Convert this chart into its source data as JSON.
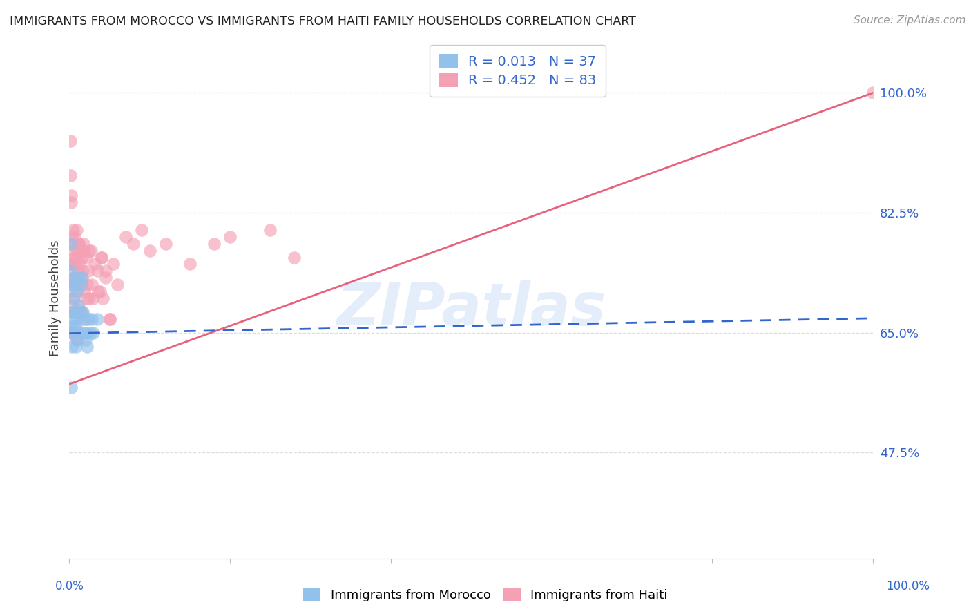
{
  "title": "IMMIGRANTS FROM MOROCCO VS IMMIGRANTS FROM HAITI FAMILY HOUSEHOLDS CORRELATION CHART",
  "source": "Source: ZipAtlas.com",
  "ylabel": "Family Households",
  "ytick_labels": [
    "100.0%",
    "82.5%",
    "65.0%",
    "47.5%"
  ],
  "ytick_values": [
    1.0,
    0.825,
    0.65,
    0.475
  ],
  "xlim": [
    0.0,
    1.0
  ],
  "ylim": [
    0.32,
    1.08
  ],
  "morocco_color": "#92C1EC",
  "haiti_color": "#F4A0B5",
  "morocco_line_color": "#3366CC",
  "haiti_line_color": "#E8607A",
  "morocco_R": 0.013,
  "morocco_N": 37,
  "haiti_R": 0.452,
  "haiti_N": 83,
  "legend_label_morocco": "Immigrants from Morocco",
  "legend_label_haiti": "Immigrants from Haiti",
  "watermark": "ZIPatlas",
  "morocco_scatter_x": [
    0.001,
    0.002,
    0.003,
    0.003,
    0.004,
    0.004,
    0.005,
    0.005,
    0.006,
    0.006,
    0.007,
    0.007,
    0.008,
    0.008,
    0.009,
    0.009,
    0.01,
    0.01,
    0.011,
    0.012,
    0.013,
    0.014,
    0.015,
    0.016,
    0.017,
    0.018,
    0.019,
    0.02,
    0.021,
    0.022,
    0.024,
    0.026,
    0.028,
    0.03,
    0.035,
    0.001,
    0.002
  ],
  "morocco_scatter_y": [
    0.74,
    0.65,
    0.68,
    0.63,
    0.72,
    0.66,
    0.7,
    0.65,
    0.73,
    0.67,
    0.72,
    0.68,
    0.66,
    0.63,
    0.71,
    0.67,
    0.68,
    0.64,
    0.69,
    0.73,
    0.65,
    0.68,
    0.72,
    0.73,
    0.68,
    0.67,
    0.65,
    0.64,
    0.65,
    0.63,
    0.67,
    0.65,
    0.67,
    0.65,
    0.67,
    0.78,
    0.57
  ],
  "haiti_scatter_x": [
    0.001,
    0.001,
    0.002,
    0.002,
    0.003,
    0.003,
    0.004,
    0.004,
    0.005,
    0.005,
    0.005,
    0.006,
    0.006,
    0.007,
    0.007,
    0.007,
    0.008,
    0.008,
    0.009,
    0.009,
    0.009,
    0.01,
    0.01,
    0.01,
    0.011,
    0.012,
    0.012,
    0.013,
    0.013,
    0.014,
    0.015,
    0.016,
    0.016,
    0.017,
    0.018,
    0.019,
    0.02,
    0.021,
    0.022,
    0.024,
    0.025,
    0.027,
    0.03,
    0.035,
    0.038,
    0.04,
    0.042,
    0.045,
    0.05,
    0.055,
    0.06,
    0.07,
    0.08,
    0.09,
    0.1,
    0.12,
    0.15,
    0.18,
    0.2,
    0.25,
    0.28,
    0.001,
    0.001,
    0.002,
    0.002,
    0.003,
    0.004,
    0.005,
    0.006,
    0.008,
    0.01,
    0.012,
    0.015,
    0.018,
    0.022,
    0.025,
    0.028,
    0.032,
    0.036,
    0.04,
    0.045,
    0.05,
    1.0
  ],
  "haiti_scatter_y": [
    0.93,
    0.75,
    0.85,
    0.68,
    0.79,
    0.65,
    0.75,
    0.69,
    0.8,
    0.73,
    0.65,
    0.76,
    0.7,
    0.79,
    0.72,
    0.66,
    0.75,
    0.68,
    0.8,
    0.73,
    0.64,
    0.77,
    0.71,
    0.64,
    0.74,
    0.78,
    0.69,
    0.75,
    0.68,
    0.77,
    0.72,
    0.76,
    0.68,
    0.74,
    0.77,
    0.71,
    0.67,
    0.76,
    0.7,
    0.74,
    0.7,
    0.77,
    0.7,
    0.74,
    0.71,
    0.76,
    0.7,
    0.74,
    0.67,
    0.75,
    0.72,
    0.79,
    0.78,
    0.8,
    0.77,
    0.78,
    0.75,
    0.78,
    0.79,
    0.8,
    0.76,
    0.88,
    0.75,
    0.84,
    0.71,
    0.77,
    0.72,
    0.78,
    0.73,
    0.76,
    0.72,
    0.78,
    0.73,
    0.78,
    0.72,
    0.77,
    0.72,
    0.75,
    0.71,
    0.76,
    0.73,
    0.67,
    1.0
  ],
  "haiti_line_x0": 0.0,
  "haiti_line_y0": 0.575,
  "haiti_line_x1": 1.0,
  "haiti_line_y1": 1.0,
  "morocco_line_x0": 0.0,
  "morocco_line_y0": 0.649,
  "morocco_line_x1": 1.0,
  "morocco_line_y1": 0.671,
  "bg_color": "#FFFFFF",
  "grid_color": "#DDDDDD",
  "title_color": "#222222",
  "tick_color": "#3366CC"
}
